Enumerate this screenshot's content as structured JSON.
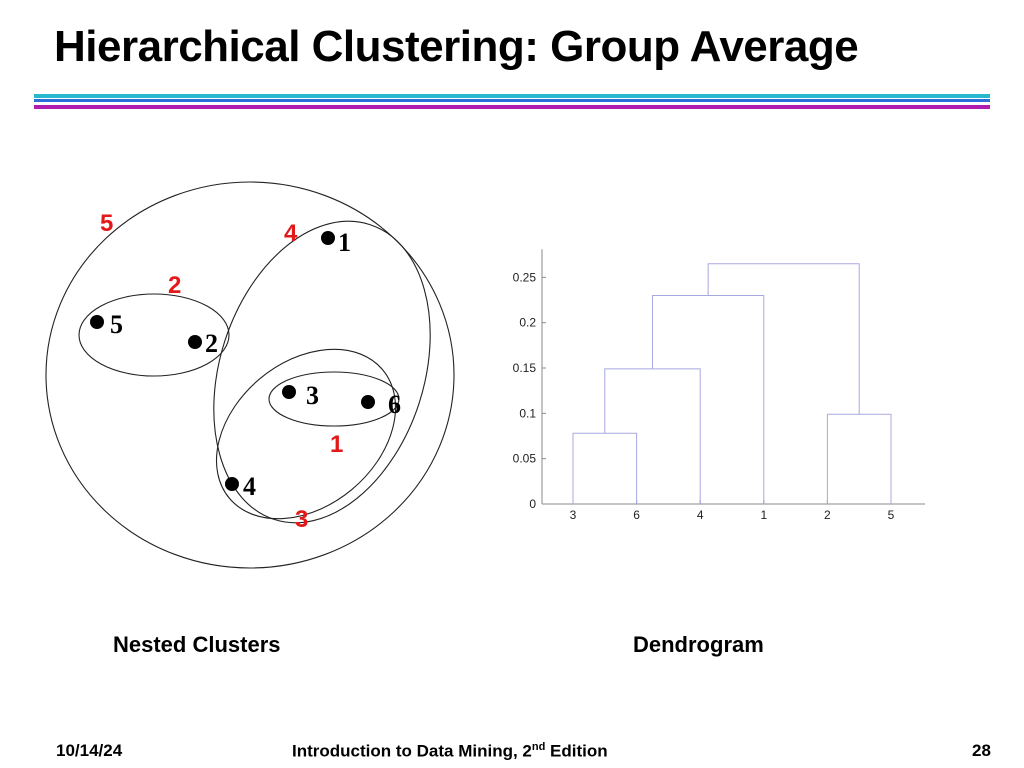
{
  "slide": {
    "title": "Hierarchical Clustering: Group Average",
    "colors": {
      "rule_top": "#27b8d0",
      "rule_mid": "#2a6fd8",
      "rule_bottom": "#b01cb0",
      "cluster_label": "#e31818"
    }
  },
  "nested_clusters": {
    "caption": "Nested Clusters",
    "points": [
      "1",
      "2",
      "3",
      "4",
      "5",
      "6"
    ],
    "cluster_labels": [
      "1",
      "2",
      "3",
      "4",
      "5"
    ]
  },
  "dendrogram": {
    "caption": "Dendrogram"
  },
  "chart_data": {
    "type": "dendrogram",
    "leaf_order": [
      "3",
      "6",
      "4",
      "1",
      "2",
      "5"
    ],
    "ylim": [
      0,
      0.27
    ],
    "yticks": [
      0,
      0.05,
      0.1,
      0.15,
      0.2,
      0.25
    ],
    "ytick_labels": [
      "0",
      "0.05",
      "0.1",
      "0.15",
      "0.2",
      "0.25"
    ],
    "merges": [
      {
        "members": [
          "3",
          "6"
        ],
        "height": 0.078
      },
      {
        "members": [
          "2",
          "5"
        ],
        "height": 0.099
      },
      {
        "members": [
          "3,6",
          "4"
        ],
        "height": 0.149
      },
      {
        "members": [
          "3,6,4",
          "1"
        ],
        "height": 0.23
      },
      {
        "members": [
          "3,6,4,1",
          "2,5"
        ],
        "height": 0.265
      }
    ]
  },
  "footer": {
    "date": "10/14/24",
    "course_main": "Introduction to Data Mining, 2",
    "course_sup": "nd",
    "course_rest": " Edition",
    "page": "28"
  }
}
